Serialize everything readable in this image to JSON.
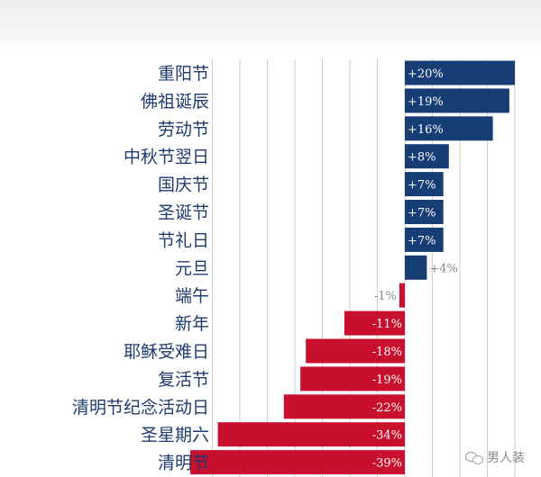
{
  "chart_data": {
    "type": "bar",
    "orientation": "horizontal",
    "categories": [
      "重阳节",
      "佛祖诞辰",
      "劳动节",
      "中秋节翌日",
      "国庆节",
      "圣诞节",
      "节礼日",
      "元旦",
      "端午",
      "新年",
      "耶稣受难日",
      "复活节",
      "清明节纪念活动日",
      "圣星期六",
      "清明节"
    ],
    "values": [
      20,
      19,
      16,
      8,
      7,
      7,
      7,
      4,
      -1,
      -11,
      -18,
      -19,
      -22,
      -34,
      -39
    ],
    "value_labels": [
      "+20%",
      "+19%",
      "+16%",
      "+8%",
      "+7%",
      "+7%",
      "+7%",
      "+4%",
      "-1%",
      "-11%",
      "-18%",
      "-19%",
      "-22%",
      "-34%",
      "-39%"
    ],
    "xlim": [
      -40,
      25
    ],
    "grid": true,
    "colors": {
      "positive": "#163d74",
      "negative": "#c8102e",
      "label": "#1f3b6e",
      "grid": "#cfcfcf"
    }
  },
  "watermark": {
    "text": "男人装",
    "icon": "wechat-icon"
  }
}
